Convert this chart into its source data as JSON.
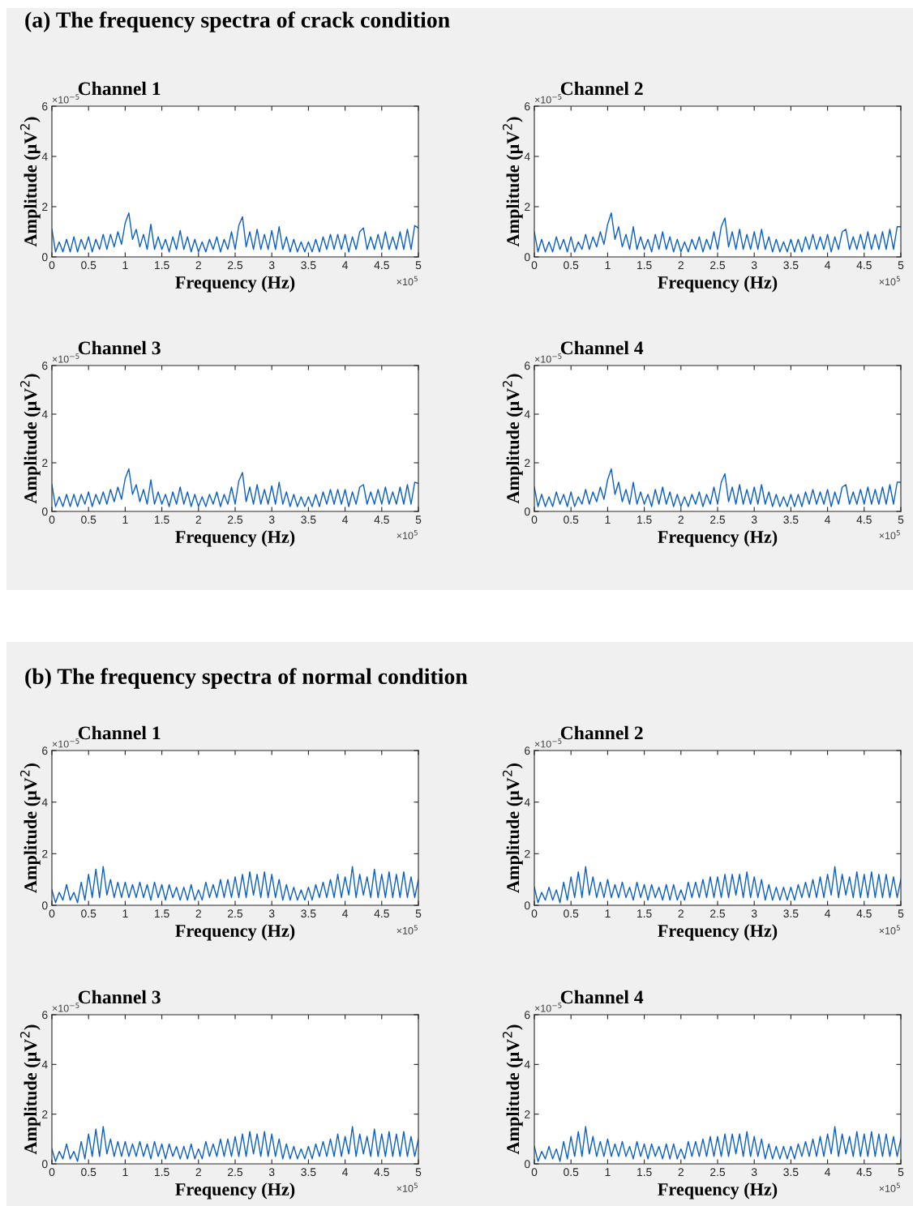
{
  "chart_data": [
    {
      "type": "line",
      "subtitle": "(a) The frequency spectra of crack condition",
      "title": "Channel 1",
      "xlabel": "Frequency (Hz)",
      "ylabel": "Amplitude (μV$^{2}$)",
      "annotations": [
        "×10$^{−5}$",
        "×10$^{5}$"
      ],
      "xlim": [
        0,
        5
      ],
      "ylim": [
        0,
        6
      ],
      "xticks": [
        0,
        0.5,
        1,
        1.5,
        2,
        2.5,
        3,
        3.5,
        4,
        4.5,
        5
      ],
      "yticks": [
        0,
        2,
        4,
        6
      ],
      "grid": false,
      "legend": false,
      "x": [
        0,
        0.05,
        0.1,
        0.15,
        0.2,
        0.25,
        0.3,
        0.35,
        0.4,
        0.45,
        0.5,
        0.55,
        0.6,
        0.65,
        0.7,
        0.75,
        0.8,
        0.85,
        0.9,
        0.95,
        1,
        1.05,
        1.1,
        1.15,
        1.2,
        1.25,
        1.3,
        1.35,
        1.4,
        1.45,
        1.5,
        1.55,
        1.6,
        1.65,
        1.7,
        1.75,
        1.8,
        1.85,
        1.9,
        1.95,
        2,
        2.05,
        2.1,
        2.15,
        2.2,
        2.25,
        2.3,
        2.35,
        2.4,
        2.45,
        2.5,
        2.55,
        2.6,
        2.65,
        2.7,
        2.75,
        2.8,
        2.85,
        2.9,
        2.95,
        3,
        3.05,
        3.1,
        3.15,
        3.2,
        3.25,
        3.3,
        3.35,
        3.4,
        3.45,
        3.5,
        3.55,
        3.6,
        3.65,
        3.7,
        3.75,
        3.8,
        3.85,
        3.9,
        3.95,
        4,
        4.05,
        4.1,
        4.15,
        4.2,
        4.25,
        4.3,
        4.35,
        4.4,
        4.45,
        4.5,
        4.55,
        4.6,
        4.65,
        4.7,
        4.75,
        4.8,
        4.85,
        4.9,
        4.95,
        5
      ],
      "series": [
        {
          "color": "#0a5fc8",
          "values": [
            1.1,
            0.2,
            0.6,
            0.2,
            0.7,
            0.2,
            0.8,
            0.2,
            0.7,
            0.3,
            0.8,
            0.2,
            0.7,
            0.3,
            0.9,
            0.3,
            0.9,
            0.4,
            1.0,
            0.5,
            1.35,
            1.75,
            0.7,
            1.1,
            0.4,
            0.9,
            0.3,
            1.3,
            0.3,
            0.8,
            0.3,
            0.7,
            0.2,
            0.8,
            0.3,
            1.05,
            0.3,
            0.8,
            0.2,
            0.7,
            0.2,
            0.6,
            0.2,
            0.7,
            0.3,
            0.8,
            0.2,
            0.7,
            0.3,
            1.0,
            0.3,
            1.25,
            1.6,
            0.4,
            1.0,
            0.3,
            1.1,
            0.3,
            0.9,
            0.3,
            1.05,
            0.3,
            1.2,
            0.3,
            0.8,
            0.2,
            0.7,
            0.2,
            0.6,
            0.2,
            0.6,
            0.2,
            0.7,
            0.2,
            0.8,
            0.3,
            0.9,
            0.3,
            0.9,
            0.3,
            0.9,
            0.2,
            0.8,
            0.3,
            1.0,
            1.15,
            0.3,
            0.8,
            0.3,
            0.9,
            0.3,
            1.0,
            0.3,
            0.8,
            0.3,
            1.0,
            0.3,
            1.1,
            0.3,
            1.25,
            1.15
          ]
        }
      ]
    },
    {
      "type": "line",
      "title": "Channel 2",
      "xlabel": "Frequency (Hz)",
      "ylabel": "Amplitude (μV$^{2}$)",
      "annotations": [
        "×10$^{−5}$",
        "×10$^{5}$"
      ],
      "xlim": [
        0,
        5
      ],
      "ylim": [
        0,
        6
      ],
      "xticks": [
        0,
        0.5,
        1,
        1.5,
        2,
        2.5,
        3,
        3.5,
        4,
        4.5,
        5
      ],
      "yticks": [
        0,
        2,
        4,
        6
      ],
      "grid": false,
      "legend": false,
      "x": [
        0,
        0.05,
        0.1,
        0.15,
        0.2,
        0.25,
        0.3,
        0.35,
        0.4,
        0.45,
        0.5,
        0.55,
        0.6,
        0.65,
        0.7,
        0.75,
        0.8,
        0.85,
        0.9,
        0.95,
        1,
        1.05,
        1.1,
        1.15,
        1.2,
        1.25,
        1.3,
        1.35,
        1.4,
        1.45,
        1.5,
        1.55,
        1.6,
        1.65,
        1.7,
        1.75,
        1.8,
        1.85,
        1.9,
        1.95,
        2,
        2.05,
        2.1,
        2.15,
        2.2,
        2.25,
        2.3,
        2.35,
        2.4,
        2.45,
        2.5,
        2.55,
        2.6,
        2.65,
        2.7,
        2.75,
        2.8,
        2.85,
        2.9,
        2.95,
        3,
        3.05,
        3.1,
        3.15,
        3.2,
        3.25,
        3.3,
        3.35,
        3.4,
        3.45,
        3.5,
        3.55,
        3.6,
        3.65,
        3.7,
        3.75,
        3.8,
        3.85,
        3.9,
        3.95,
        4,
        4.05,
        4.1,
        4.15,
        4.2,
        4.25,
        4.3,
        4.35,
        4.4,
        4.45,
        4.5,
        4.55,
        4.6,
        4.65,
        4.7,
        4.75,
        4.8,
        4.85,
        4.9,
        4.95,
        5
      ],
      "series": [
        {
          "color": "#0a5fc8",
          "values": [
            1.0,
            0.2,
            0.7,
            0.2,
            0.6,
            0.2,
            0.8,
            0.3,
            0.7,
            0.2,
            0.8,
            0.2,
            0.6,
            0.3,
            0.9,
            0.3,
            0.8,
            0.4,
            1.0,
            0.5,
            1.3,
            1.75,
            0.7,
            1.2,
            0.4,
            0.9,
            0.3,
            1.2,
            0.3,
            0.8,
            0.3,
            0.7,
            0.2,
            0.9,
            0.3,
            1.0,
            0.3,
            0.8,
            0.2,
            0.7,
            0.2,
            0.6,
            0.2,
            0.7,
            0.3,
            0.8,
            0.2,
            0.7,
            0.3,
            1.0,
            0.3,
            1.2,
            1.55,
            0.4,
            1.0,
            0.3,
            1.1,
            0.3,
            0.9,
            0.3,
            1.0,
            0.3,
            1.1,
            0.3,
            0.8,
            0.2,
            0.7,
            0.2,
            0.6,
            0.2,
            0.7,
            0.2,
            0.7,
            0.2,
            0.8,
            0.3,
            0.9,
            0.3,
            0.8,
            0.3,
            0.9,
            0.2,
            0.8,
            0.3,
            1.0,
            1.1,
            0.3,
            0.8,
            0.3,
            0.9,
            0.3,
            1.0,
            0.3,
            0.9,
            0.3,
            1.0,
            0.3,
            1.1,
            0.3,
            1.2,
            1.2
          ]
        }
      ]
    },
    {
      "type": "line",
      "title": "Channel 3",
      "xlabel": "Frequency (Hz)",
      "ylabel": "Amplitude (μV$^{2}$)",
      "annotations": [
        "×10$^{−5}$",
        "×10$^{5}$"
      ],
      "xlim": [
        0,
        5
      ],
      "ylim": [
        0,
        6
      ],
      "xticks": [
        0,
        0.5,
        1,
        1.5,
        2,
        2.5,
        3,
        3.5,
        4,
        4.5,
        5
      ],
      "yticks": [
        0,
        2,
        4,
        6
      ],
      "grid": false,
      "legend": false,
      "x": [
        0,
        0.05,
        0.1,
        0.15,
        0.2,
        0.25,
        0.3,
        0.35,
        0.4,
        0.45,
        0.5,
        0.55,
        0.6,
        0.65,
        0.7,
        0.75,
        0.8,
        0.85,
        0.9,
        0.95,
        1,
        1.05,
        1.1,
        1.15,
        1.2,
        1.25,
        1.3,
        1.35,
        1.4,
        1.45,
        1.5,
        1.55,
        1.6,
        1.65,
        1.7,
        1.75,
        1.8,
        1.85,
        1.9,
        1.95,
        2,
        2.05,
        2.1,
        2.15,
        2.2,
        2.25,
        2.3,
        2.35,
        2.4,
        2.45,
        2.5,
        2.55,
        2.6,
        2.65,
        2.7,
        2.75,
        2.8,
        2.85,
        2.9,
        2.95,
        3,
        3.05,
        3.1,
        3.15,
        3.2,
        3.25,
        3.3,
        3.35,
        3.4,
        3.45,
        3.5,
        3.55,
        3.6,
        3.65,
        3.7,
        3.75,
        3.8,
        3.85,
        3.9,
        3.95,
        4,
        4.05,
        4.1,
        4.15,
        4.2,
        4.25,
        4.3,
        4.35,
        4.4,
        4.45,
        4.5,
        4.55,
        4.6,
        4.65,
        4.7,
        4.75,
        4.8,
        4.85,
        4.9,
        4.95,
        5
      ],
      "series": [
        {
          "color": "#0a5fc8",
          "values": [
            1.1,
            0.2,
            0.6,
            0.2,
            0.7,
            0.2,
            0.7,
            0.2,
            0.7,
            0.3,
            0.8,
            0.2,
            0.7,
            0.3,
            0.8,
            0.3,
            0.9,
            0.4,
            1.0,
            0.5,
            1.35,
            1.75,
            0.7,
            1.1,
            0.4,
            0.9,
            0.3,
            1.3,
            0.3,
            0.8,
            0.3,
            0.7,
            0.2,
            0.8,
            0.3,
            1.0,
            0.3,
            0.8,
            0.2,
            0.7,
            0.2,
            0.6,
            0.2,
            0.7,
            0.3,
            0.8,
            0.2,
            0.7,
            0.3,
            1.0,
            0.3,
            1.25,
            1.6,
            0.4,
            1.0,
            0.3,
            1.1,
            0.3,
            0.9,
            0.3,
            1.05,
            0.3,
            1.2,
            0.3,
            0.8,
            0.2,
            0.7,
            0.2,
            0.6,
            0.2,
            0.6,
            0.2,
            0.7,
            0.2,
            0.8,
            0.3,
            0.9,
            0.3,
            0.9,
            0.3,
            0.9,
            0.2,
            0.8,
            0.3,
            1.0,
            1.1,
            0.3,
            0.8,
            0.3,
            0.9,
            0.3,
            1.0,
            0.3,
            0.8,
            0.3,
            1.0,
            0.3,
            1.1,
            0.3,
            1.2,
            1.15
          ]
        }
      ]
    },
    {
      "type": "line",
      "title": "Channel 4",
      "xlabel": "Frequency (Hz)",
      "ylabel": "Amplitude (μV$^{2}$)",
      "annotations": [
        "×10$^{−5}$",
        "×10$^{5}$"
      ],
      "xlim": [
        0,
        5
      ],
      "ylim": [
        0,
        6
      ],
      "xticks": [
        0,
        0.5,
        1,
        1.5,
        2,
        2.5,
        3,
        3.5,
        4,
        4.5,
        5
      ],
      "yticks": [
        0,
        2,
        4,
        6
      ],
      "grid": false,
      "legend": false,
      "x": [
        0,
        0.05,
        0.1,
        0.15,
        0.2,
        0.25,
        0.3,
        0.35,
        0.4,
        0.45,
        0.5,
        0.55,
        0.6,
        0.65,
        0.7,
        0.75,
        0.8,
        0.85,
        0.9,
        0.95,
        1,
        1.05,
        1.1,
        1.15,
        1.2,
        1.25,
        1.3,
        1.35,
        1.4,
        1.45,
        1.5,
        1.55,
        1.6,
        1.65,
        1.7,
        1.75,
        1.8,
        1.85,
        1.9,
        1.95,
        2,
        2.05,
        2.1,
        2.15,
        2.2,
        2.25,
        2.3,
        2.35,
        2.4,
        2.45,
        2.5,
        2.55,
        2.6,
        2.65,
        2.7,
        2.75,
        2.8,
        2.85,
        2.9,
        2.95,
        3,
        3.05,
        3.1,
        3.15,
        3.2,
        3.25,
        3.3,
        3.35,
        3.4,
        3.45,
        3.5,
        3.55,
        3.6,
        3.65,
        3.7,
        3.75,
        3.8,
        3.85,
        3.9,
        3.95,
        4,
        4.05,
        4.1,
        4.15,
        4.2,
        4.25,
        4.3,
        4.35,
        4.4,
        4.45,
        4.5,
        4.55,
        4.6,
        4.65,
        4.7,
        4.75,
        4.8,
        4.85,
        4.9,
        4.95,
        5
      ],
      "series": [
        {
          "color": "#0a5fc8",
          "values": [
            1.0,
            0.2,
            0.7,
            0.2,
            0.6,
            0.2,
            0.8,
            0.3,
            0.7,
            0.2,
            0.8,
            0.2,
            0.6,
            0.3,
            0.9,
            0.3,
            0.8,
            0.4,
            1.0,
            0.5,
            1.3,
            1.75,
            0.7,
            1.2,
            0.4,
            0.9,
            0.3,
            1.2,
            0.3,
            0.8,
            0.3,
            0.7,
            0.2,
            0.9,
            0.3,
            1.0,
            0.3,
            0.8,
            0.2,
            0.7,
            0.2,
            0.6,
            0.2,
            0.7,
            0.3,
            0.8,
            0.2,
            0.7,
            0.3,
            1.0,
            0.3,
            1.2,
            1.55,
            0.4,
            1.0,
            0.3,
            1.1,
            0.3,
            0.9,
            0.3,
            1.0,
            0.3,
            1.1,
            0.3,
            0.8,
            0.2,
            0.7,
            0.2,
            0.6,
            0.2,
            0.7,
            0.2,
            0.7,
            0.2,
            0.8,
            0.3,
            0.9,
            0.3,
            0.8,
            0.3,
            0.9,
            0.2,
            0.8,
            0.3,
            1.0,
            1.1,
            0.3,
            0.8,
            0.3,
            0.9,
            0.3,
            1.0,
            0.3,
            0.9,
            0.3,
            1.0,
            0.3,
            1.1,
            0.3,
            1.2,
            1.2
          ]
        }
      ]
    },
    {
      "type": "line",
      "subtitle": "(b) The frequency spectra of normal condition",
      "title": "Channel 1",
      "xlabel": "Frequency (Hz)",
      "ylabel": "Amplitude (μV$^{2}$)",
      "annotations": [
        "×10$^{−5}$",
        "×10$^{5}$"
      ],
      "xlim": [
        0,
        5
      ],
      "ylim": [
        0,
        6
      ],
      "xticks": [
        0,
        0.5,
        1,
        1.5,
        2,
        2.5,
        3,
        3.5,
        4,
        4.5,
        5
      ],
      "yticks": [
        0,
        2,
        4,
        6
      ],
      "grid": false,
      "legend": false,
      "x": [
        0,
        0.05,
        0.1,
        0.15,
        0.2,
        0.25,
        0.3,
        0.35,
        0.4,
        0.45,
        0.5,
        0.55,
        0.6,
        0.65,
        0.7,
        0.75,
        0.8,
        0.85,
        0.9,
        0.95,
        1,
        1.05,
        1.1,
        1.15,
        1.2,
        1.25,
        1.3,
        1.35,
        1.4,
        1.45,
        1.5,
        1.55,
        1.6,
        1.65,
        1.7,
        1.75,
        1.8,
        1.85,
        1.9,
        1.95,
        2,
        2.05,
        2.1,
        2.15,
        2.2,
        2.25,
        2.3,
        2.35,
        2.4,
        2.45,
        2.5,
        2.55,
        2.6,
        2.65,
        2.7,
        2.75,
        2.8,
        2.85,
        2.9,
        2.95,
        3,
        3.05,
        3.1,
        3.15,
        3.2,
        3.25,
        3.3,
        3.35,
        3.4,
        3.45,
        3.5,
        3.55,
        3.6,
        3.65,
        3.7,
        3.75,
        3.8,
        3.85,
        3.9,
        3.95,
        4,
        4.05,
        4.1,
        4.15,
        4.2,
        4.25,
        4.3,
        4.35,
        4.4,
        4.45,
        4.5,
        4.55,
        4.6,
        4.65,
        4.7,
        4.75,
        4.8,
        4.85,
        4.9,
        4.95,
        5
      ],
      "series": [
        {
          "color": "#0a5fc8",
          "values": [
            0.6,
            0.1,
            0.5,
            0.2,
            0.8,
            0.2,
            0.5,
            0.1,
            0.9,
            0.2,
            1.2,
            0.3,
            1.4,
            0.3,
            1.5,
            0.4,
            1.0,
            0.3,
            0.9,
            0.3,
            0.9,
            0.3,
            0.8,
            0.3,
            0.9,
            0.3,
            0.8,
            0.2,
            0.9,
            0.3,
            0.8,
            0.2,
            0.8,
            0.3,
            0.7,
            0.2,
            0.7,
            0.2,
            0.8,
            0.2,
            0.6,
            0.2,
            0.9,
            0.3,
            0.8,
            0.3,
            1.0,
            0.3,
            1.0,
            0.3,
            1.1,
            0.3,
            1.2,
            0.3,
            1.3,
            0.4,
            1.2,
            0.3,
            1.3,
            0.3,
            1.2,
            0.3,
            1.0,
            0.2,
            0.8,
            0.2,
            0.7,
            0.2,
            0.6,
            0.2,
            0.7,
            0.2,
            0.8,
            0.3,
            0.9,
            0.3,
            1.0,
            0.3,
            1.2,
            0.3,
            1.1,
            0.4,
            1.5,
            0.3,
            1.2,
            0.4,
            1.1,
            0.3,
            1.4,
            0.3,
            1.2,
            0.3,
            1.3,
            0.3,
            1.2,
            0.3,
            1.3,
            0.3,
            1.1,
            0.3,
            1.0
          ]
        }
      ]
    },
    {
      "type": "line",
      "title": "Channel 2",
      "xlabel": "Frequency (Hz)",
      "ylabel": "Amplitude (μV$^{2}$)",
      "annotations": [
        "×10$^{−5}$",
        "×10$^{5}$"
      ],
      "xlim": [
        0,
        5
      ],
      "ylim": [
        0,
        6
      ],
      "xticks": [
        0,
        0.5,
        1,
        1.5,
        2,
        2.5,
        3,
        3.5,
        4,
        4.5,
        5
      ],
      "yticks": [
        0,
        2,
        4,
        6
      ],
      "grid": false,
      "legend": false,
      "x": [
        0,
        0.05,
        0.1,
        0.15,
        0.2,
        0.25,
        0.3,
        0.35,
        0.4,
        0.45,
        0.5,
        0.55,
        0.6,
        0.65,
        0.7,
        0.75,
        0.8,
        0.85,
        0.9,
        0.95,
        1,
        1.05,
        1.1,
        1.15,
        1.2,
        1.25,
        1.3,
        1.35,
        1.4,
        1.45,
        1.5,
        1.55,
        1.6,
        1.65,
        1.7,
        1.75,
        1.8,
        1.85,
        1.9,
        1.95,
        2,
        2.05,
        2.1,
        2.15,
        2.2,
        2.25,
        2.3,
        2.35,
        2.4,
        2.45,
        2.5,
        2.55,
        2.6,
        2.65,
        2.7,
        2.75,
        2.8,
        2.85,
        2.9,
        2.95,
        3,
        3.05,
        3.1,
        3.15,
        3.2,
        3.25,
        3.3,
        3.35,
        3.4,
        3.45,
        3.5,
        3.55,
        3.6,
        3.65,
        3.7,
        3.75,
        3.8,
        3.85,
        3.9,
        3.95,
        4,
        4.05,
        4.1,
        4.15,
        4.2,
        4.25,
        4.3,
        4.35,
        4.4,
        4.45,
        4.5,
        4.55,
        4.6,
        4.65,
        4.7,
        4.75,
        4.8,
        4.85,
        4.9,
        4.95,
        5
      ],
      "series": [
        {
          "color": "#0a5fc8",
          "values": [
            0.7,
            0.1,
            0.5,
            0.2,
            0.7,
            0.2,
            0.6,
            0.1,
            0.9,
            0.2,
            1.1,
            0.3,
            1.3,
            0.3,
            1.5,
            0.4,
            1.1,
            0.3,
            0.9,
            0.3,
            1.0,
            0.3,
            0.8,
            0.3,
            0.9,
            0.3,
            0.7,
            0.2,
            0.9,
            0.3,
            0.8,
            0.2,
            0.8,
            0.3,
            0.7,
            0.2,
            0.8,
            0.2,
            0.8,
            0.2,
            0.6,
            0.2,
            0.9,
            0.3,
            0.9,
            0.3,
            1.0,
            0.3,
            1.1,
            0.3,
            1.1,
            0.3,
            1.2,
            0.3,
            1.2,
            0.4,
            1.2,
            0.3,
            1.3,
            0.3,
            1.1,
            0.3,
            1.0,
            0.2,
            0.8,
            0.2,
            0.7,
            0.2,
            0.7,
            0.2,
            0.7,
            0.2,
            0.8,
            0.3,
            0.9,
            0.3,
            1.0,
            0.3,
            1.1,
            0.3,
            1.2,
            0.4,
            1.5,
            0.3,
            1.2,
            0.4,
            1.1,
            0.3,
            1.3,
            0.3,
            1.2,
            0.3,
            1.3,
            0.3,
            1.2,
            0.3,
            1.2,
            0.3,
            1.1,
            0.3,
            1.0
          ]
        }
      ]
    },
    {
      "type": "line",
      "title": "Channel 3",
      "xlabel": "Frequency (Hz)",
      "ylabel": "Amplitude (μV$^{2}$)",
      "annotations": [
        "×10$^{−5}$",
        "×10$^{5}$"
      ],
      "xlim": [
        0,
        5
      ],
      "ylim": [
        0,
        6
      ],
      "xticks": [
        0,
        0.5,
        1,
        1.5,
        2,
        2.5,
        3,
        3.5,
        4,
        4.5,
        5
      ],
      "yticks": [
        0,
        2,
        4,
        6
      ],
      "grid": false,
      "legend": false,
      "x": [
        0,
        0.05,
        0.1,
        0.15,
        0.2,
        0.25,
        0.3,
        0.35,
        0.4,
        0.45,
        0.5,
        0.55,
        0.6,
        0.65,
        0.7,
        0.75,
        0.8,
        0.85,
        0.9,
        0.95,
        1,
        1.05,
        1.1,
        1.15,
        1.2,
        1.25,
        1.3,
        1.35,
        1.4,
        1.45,
        1.5,
        1.55,
        1.6,
        1.65,
        1.7,
        1.75,
        1.8,
        1.85,
        1.9,
        1.95,
        2,
        2.05,
        2.1,
        2.15,
        2.2,
        2.25,
        2.3,
        2.35,
        2.4,
        2.45,
        2.5,
        2.55,
        2.6,
        2.65,
        2.7,
        2.75,
        2.8,
        2.85,
        2.9,
        2.95,
        3,
        3.05,
        3.1,
        3.15,
        3.2,
        3.25,
        3.3,
        3.35,
        3.4,
        3.45,
        3.5,
        3.55,
        3.6,
        3.65,
        3.7,
        3.75,
        3.8,
        3.85,
        3.9,
        3.95,
        4,
        4.05,
        4.1,
        4.15,
        4.2,
        4.25,
        4.3,
        4.35,
        4.4,
        4.45,
        4.5,
        4.55,
        4.6,
        4.65,
        4.7,
        4.75,
        4.8,
        4.85,
        4.9,
        4.95,
        5
      ],
      "series": [
        {
          "color": "#0a5fc8",
          "values": [
            0.6,
            0.1,
            0.5,
            0.2,
            0.8,
            0.2,
            0.5,
            0.1,
            0.9,
            0.2,
            1.2,
            0.3,
            1.4,
            0.3,
            1.5,
            0.4,
            1.0,
            0.3,
            0.9,
            0.3,
            0.9,
            0.3,
            0.8,
            0.3,
            0.9,
            0.3,
            0.8,
            0.2,
            0.9,
            0.3,
            0.8,
            0.2,
            0.8,
            0.3,
            0.7,
            0.2,
            0.7,
            0.2,
            0.8,
            0.2,
            0.6,
            0.2,
            0.9,
            0.3,
            0.8,
            0.3,
            1.0,
            0.3,
            1.0,
            0.3,
            1.1,
            0.3,
            1.2,
            0.3,
            1.3,
            0.4,
            1.2,
            0.3,
            1.3,
            0.3,
            1.2,
            0.3,
            1.0,
            0.2,
            0.8,
            0.2,
            0.7,
            0.2,
            0.6,
            0.2,
            0.7,
            0.2,
            0.8,
            0.3,
            0.9,
            0.3,
            1.0,
            0.3,
            1.2,
            0.3,
            1.1,
            0.4,
            1.5,
            0.3,
            1.2,
            0.4,
            1.1,
            0.3,
            1.4,
            0.3,
            1.2,
            0.3,
            1.3,
            0.3,
            1.2,
            0.3,
            1.3,
            0.3,
            1.1,
            0.3,
            1.0
          ]
        }
      ]
    },
    {
      "type": "line",
      "title": "Channel 4",
      "xlabel": "Frequency (Hz)",
      "ylabel": "Amplitude (μV$^{2}$)",
      "annotations": [
        "×10$^{−5}$",
        "×10$^{5}$"
      ],
      "xlim": [
        0,
        5
      ],
      "ylim": [
        0,
        6
      ],
      "xticks": [
        0,
        0.5,
        1,
        1.5,
        2,
        2.5,
        3,
        3.5,
        4,
        4.5,
        5
      ],
      "yticks": [
        0,
        2,
        4,
        6
      ],
      "grid": false,
      "legend": false,
      "x": [
        0,
        0.05,
        0.1,
        0.15,
        0.2,
        0.25,
        0.3,
        0.35,
        0.4,
        0.45,
        0.5,
        0.55,
        0.6,
        0.65,
        0.7,
        0.75,
        0.8,
        0.85,
        0.9,
        0.95,
        1,
        1.05,
        1.1,
        1.15,
        1.2,
        1.25,
        1.3,
        1.35,
        1.4,
        1.45,
        1.5,
        1.55,
        1.6,
        1.65,
        1.7,
        1.75,
        1.8,
        1.85,
        1.9,
        1.95,
        2,
        2.05,
        2.1,
        2.15,
        2.2,
        2.25,
        2.3,
        2.35,
        2.4,
        2.45,
        2.5,
        2.55,
        2.6,
        2.65,
        2.7,
        2.75,
        2.8,
        2.85,
        2.9,
        2.95,
        3,
        3.05,
        3.1,
        3.15,
        3.2,
        3.25,
        3.3,
        3.35,
        3.4,
        3.45,
        3.5,
        3.55,
        3.6,
        3.65,
        3.7,
        3.75,
        3.8,
        3.85,
        3.9,
        3.95,
        4,
        4.05,
        4.1,
        4.15,
        4.2,
        4.25,
        4.3,
        4.35,
        4.4,
        4.45,
        4.5,
        4.55,
        4.6,
        4.65,
        4.7,
        4.75,
        4.8,
        4.85,
        4.9,
        4.95,
        5
      ],
      "series": [
        {
          "color": "#0a5fc8",
          "values": [
            0.7,
            0.1,
            0.5,
            0.2,
            0.7,
            0.2,
            0.6,
            0.1,
            0.9,
            0.2,
            1.1,
            0.3,
            1.3,
            0.3,
            1.5,
            0.4,
            1.1,
            0.3,
            0.9,
            0.3,
            1.0,
            0.3,
            0.8,
            0.3,
            0.9,
            0.3,
            0.7,
            0.2,
            0.9,
            0.3,
            0.8,
            0.2,
            0.8,
            0.3,
            0.7,
            0.2,
            0.8,
            0.2,
            0.8,
            0.2,
            0.6,
            0.2,
            0.9,
            0.3,
            0.9,
            0.3,
            1.0,
            0.3,
            1.1,
            0.3,
            1.1,
            0.3,
            1.2,
            0.3,
            1.2,
            0.4,
            1.2,
            0.3,
            1.3,
            0.3,
            1.1,
            0.3,
            1.0,
            0.2,
            0.8,
            0.2,
            0.7,
            0.2,
            0.7,
            0.2,
            0.7,
            0.2,
            0.8,
            0.3,
            0.9,
            0.3,
            1.0,
            0.3,
            1.1,
            0.3,
            1.2,
            0.4,
            1.5,
            0.3,
            1.2,
            0.4,
            1.1,
            0.3,
            1.3,
            0.3,
            1.2,
            0.3,
            1.3,
            0.3,
            1.2,
            0.3,
            1.2,
            0.3,
            1.1,
            0.3,
            1.0
          ]
        }
      ]
    }
  ]
}
